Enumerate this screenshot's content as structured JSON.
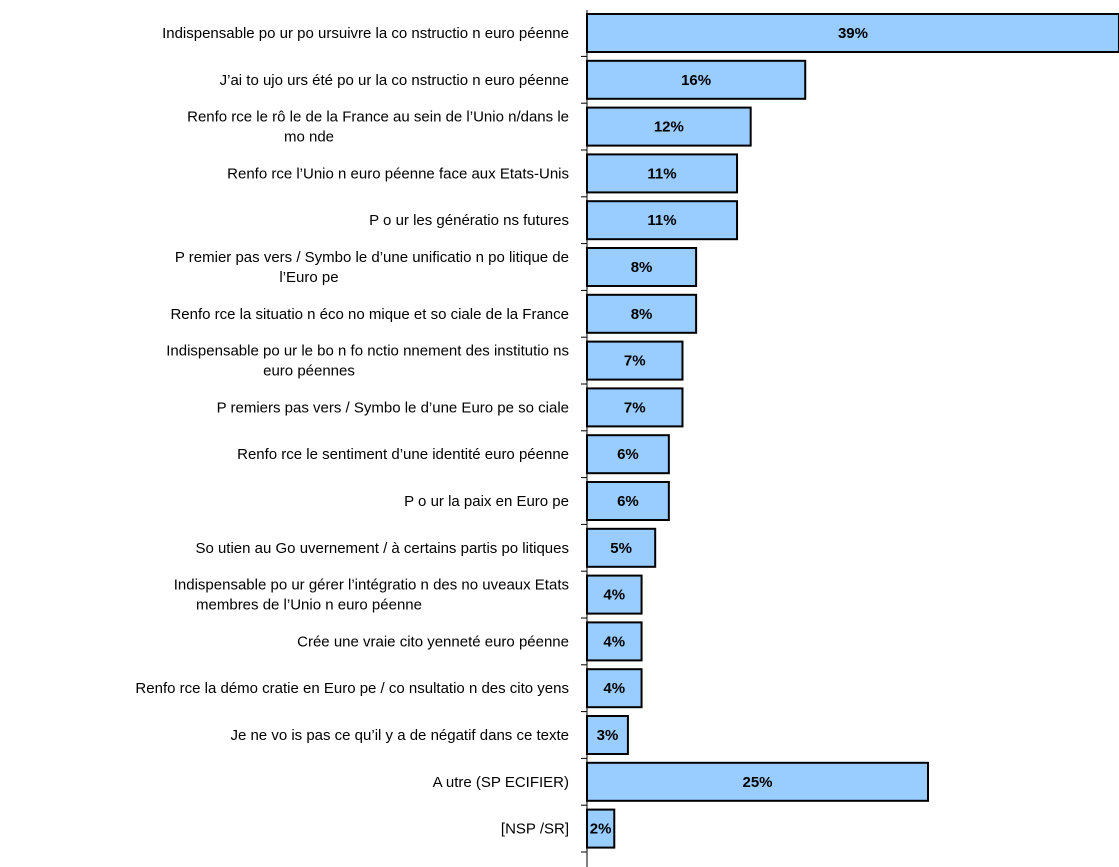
{
  "chart_data": {
    "type": "bar",
    "orientation": "horizontal",
    "title": "",
    "xlabel": "",
    "ylabel": "",
    "grid": false,
    "legend": "none",
    "bar_color": "#99CCFF",
    "bar_border_color": "#000000",
    "value_suffix": "%",
    "xlim": [
      0,
      39
    ],
    "categories": [
      "Indispensable po ur po ursuivre la co nstructio n euro péenne",
      "J’ai to ujo urs été po ur la co nstructio n euro péenne",
      "Renfo rce le rô le de la France au sein de l’Unio n/dans le mo nde",
      "Renfo rce l’Unio n euro péenne face aux Etats-Unis",
      "P o ur les génératio ns futures",
      "P remier pas vers / Symbo le d’une unificatio n po litique de l’Euro pe",
      "Renfo rce la situatio n éco no mique et so ciale de la France",
      "Indispensable po ur le bo n fo nctio nnement des institutio ns euro péennes",
      "P remiers pas vers / Symbo le d’une Euro pe so ciale",
      "Renfo rce le sentiment d’une identité euro péenne",
      "P o ur la paix en Euro pe",
      "So utien au Go uvernement / à certains partis po litiques",
      "Indispensable po ur gérer l’intégratio n des no uveaux Etats membres de l’Unio n euro péenne",
      "Crée une vraie cito yenneté euro péenne",
      "Renfo rce la démo cratie en Euro pe / co nsultatio n des cito yens",
      "Je ne vo is pas ce qu’il y a de négatif dans ce texte",
      "A utre (SP ECIFIER)",
      "[NSP /SR]"
    ],
    "category_lines": [
      [
        "Indispensable po ur po ursuivre la co nstructio n euro péenne"
      ],
      [
        "J’ai to ujo urs été po ur la co nstructio n euro péenne"
      ],
      [
        "Renfo rce le rô le de la France au sein de l’Unio n/dans le",
        "mo nde"
      ],
      [
        "Renfo rce l’Unio n euro péenne face aux Etats-Unis"
      ],
      [
        "P o ur les génératio ns futures"
      ],
      [
        "P remier pas vers / Symbo le d’une unificatio n po litique de",
        "l’Euro pe"
      ],
      [
        "Renfo rce la situatio n éco no mique et so ciale de la France"
      ],
      [
        "Indispensable po ur le bo n fo nctio nnement des institutio ns",
        "euro péennes"
      ],
      [
        "P remiers pas vers / Symbo le d’une Euro pe so ciale"
      ],
      [
        "Renfo rce le sentiment d’une identité euro péenne"
      ],
      [
        "P o ur la paix en Euro pe"
      ],
      [
        "So utien au Go uvernement / à certains partis po litiques"
      ],
      [
        "Indispensable po ur gérer l’intégratio n des no uveaux Etats",
        "membres de l’Unio n euro péenne"
      ],
      [
        "Crée une vraie cito yenneté euro péenne"
      ],
      [
        "Renfo rce la démo cratie en Euro pe / co nsultatio n des cito yens"
      ],
      [
        "Je ne vo is pas ce qu’il y a de négatif dans ce texte"
      ],
      [
        "A utre (SP ECIFIER)"
      ],
      [
        "[NSP /SR]"
      ]
    ],
    "values": [
      39,
      16,
      12,
      11,
      11,
      8,
      8,
      7,
      7,
      6,
      6,
      5,
      4,
      4,
      4,
      3,
      25,
      2
    ],
    "value_labels": [
      "39%",
      "16%",
      "12%",
      "11%",
      "11%",
      "8%",
      "8%",
      "7%",
      "7%",
      "6%",
      "6%",
      "5%",
      "4%",
      "4%",
      "4%",
      "3%",
      "25%",
      "2%"
    ]
  }
}
